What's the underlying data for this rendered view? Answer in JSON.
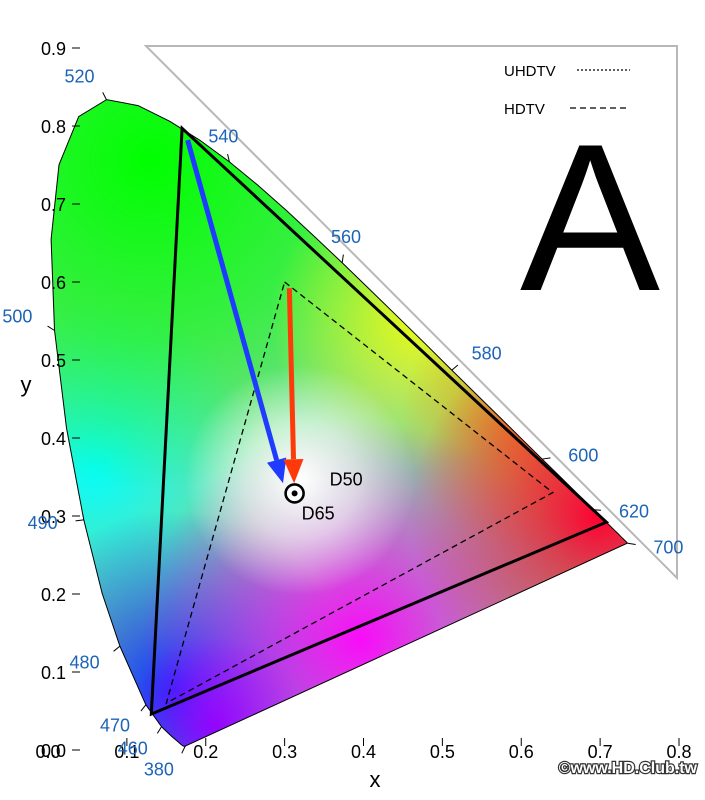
{
  "chart_data": {
    "type": "diagram",
    "xlabel": "x",
    "ylabel": "y",
    "xlim": [
      0,
      0.8
    ],
    "ylim": [
      0,
      0.9
    ],
    "x_ticks": [
      "0.0",
      "0.1",
      "0.2",
      "0.3",
      "0.4",
      "0.5",
      "0.6",
      "0.7",
      "0.8"
    ],
    "y_ticks": [
      "0.0",
      "0.1",
      "0.2",
      "0.3",
      "0.4",
      "0.5",
      "0.6",
      "0.7",
      "0.8",
      "0.9"
    ],
    "wavelength_labels": [
      {
        "text": "380",
        "x": 0.174,
        "y": 0.005
      },
      {
        "text": "460",
        "x": 0.144,
        "y": 0.03
      },
      {
        "text": "470",
        "x": 0.124,
        "y": 0.058
      },
      {
        "text": "480",
        "x": 0.091,
        "y": 0.133
      },
      {
        "text": "490",
        "x": 0.045,
        "y": 0.295
      },
      {
        "text": "500",
        "x": 0.008,
        "y": 0.538
      },
      {
        "text": "520",
        "x": 0.074,
        "y": 0.834
      },
      {
        "text": "540",
        "x": 0.23,
        "y": 0.754
      },
      {
        "text": "560",
        "x": 0.373,
        "y": 0.625
      },
      {
        "text": "580",
        "x": 0.512,
        "y": 0.487
      },
      {
        "text": "600",
        "x": 0.627,
        "y": 0.373
      },
      {
        "text": "620",
        "x": 0.691,
        "y": 0.308
      },
      {
        "text": "700",
        "x": 0.735,
        "y": 0.265
      }
    ],
    "gamut_uhdtv": [
      [
        0.17,
        0.797
      ],
      [
        0.708,
        0.292
      ],
      [
        0.131,
        0.046
      ]
    ],
    "gamut_hdtv": [
      [
        0.3,
        0.6
      ],
      [
        0.64,
        0.33
      ],
      [
        0.15,
        0.06
      ]
    ],
    "white_points": [
      {
        "text": "D50",
        "x": 0.3457,
        "y": 0.3585
      },
      {
        "text": "D65",
        "x": 0.3127,
        "y": 0.329
      }
    ],
    "arrows": [
      {
        "color": "#1f3bff",
        "from": [
          0.177,
          0.782
        ],
        "to": [
          0.298,
          0.342
        ]
      },
      {
        "color": "#ff3a0a",
        "from": [
          0.306,
          0.592
        ],
        "to": [
          0.312,
          0.342
        ]
      }
    ],
    "legend": [
      {
        "text": "UHDTV",
        "dash": "dotted"
      },
      {
        "text": "HDTV",
        "dash": "dashed"
      }
    ],
    "panel_letter": "A",
    "credit": "©www.HD.Club.tw"
  }
}
